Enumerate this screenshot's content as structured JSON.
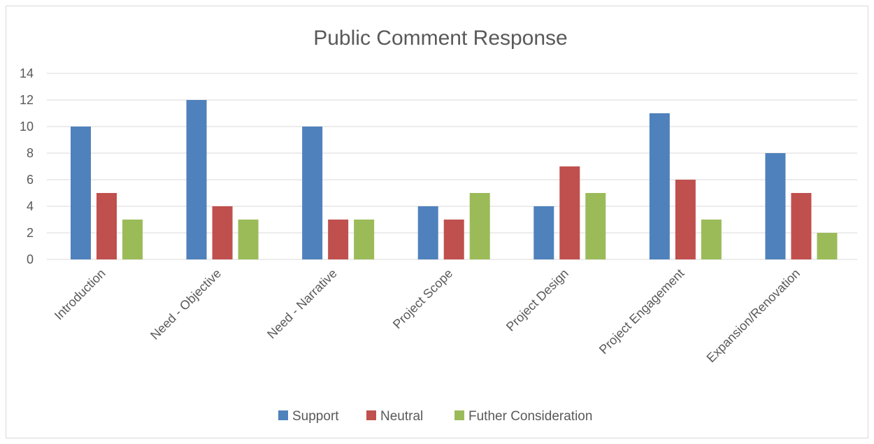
{
  "chart_data": {
    "type": "bar",
    "title": "Public Comment Response",
    "xlabel": "",
    "ylabel": "",
    "ylim": [
      0,
      14
    ],
    "yticks": [
      0,
      2,
      4,
      6,
      8,
      10,
      12,
      14
    ],
    "grid": true,
    "legend_position": "bottom",
    "categories": [
      "Introduction",
      "Need - Objective",
      "Need - Narrative",
      "Project Scope",
      "Project Design",
      "Project Engagement",
      "Expansion/Renovation"
    ],
    "series": [
      {
        "name": "Support",
        "color": "#4f81bd",
        "values": [
          10,
          12,
          10,
          4,
          4,
          11,
          8
        ]
      },
      {
        "name": "Neutral",
        "color": "#c0504d",
        "values": [
          5,
          4,
          3,
          3,
          7,
          6,
          5
        ]
      },
      {
        "name": "Futher Consideration",
        "color": "#9bbb59",
        "values": [
          3,
          3,
          3,
          5,
          5,
          3,
          2
        ]
      }
    ]
  }
}
